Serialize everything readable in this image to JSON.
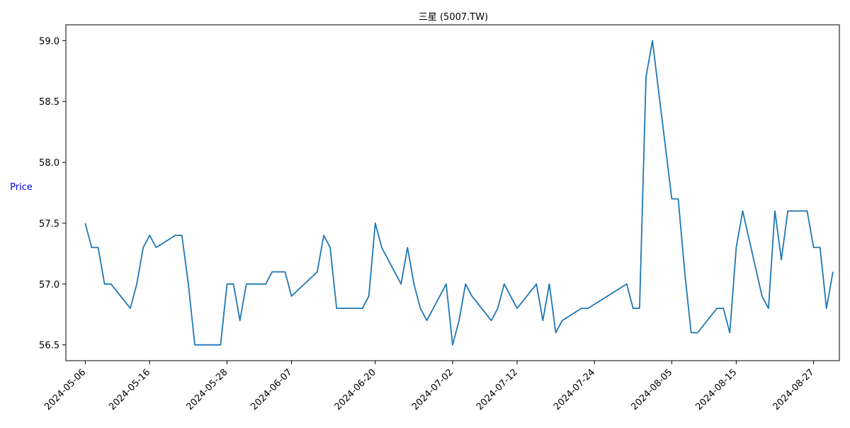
{
  "chart_data": {
    "type": "line",
    "title": "三星 (5007.TW)",
    "xlabel": "",
    "ylabel": "Price",
    "ylim": [
      56.37,
      59.13
    ],
    "xlim": [
      "2024-05-03",
      "2024-08-31"
    ],
    "grid": false,
    "colors": {
      "line": "#1f77b4",
      "ylabel": "#0000ff"
    },
    "x_tick_labels": [
      "2024-05-06",
      "2024-05-16",
      "2024-05-28",
      "2024-06-07",
      "2024-06-20",
      "2024-07-02",
      "2024-07-12",
      "2024-07-24",
      "2024-08-05",
      "2024-08-15",
      "2024-08-27"
    ],
    "y_tick_labels": [
      "56.5",
      "57.0",
      "57.5",
      "58.0",
      "58.5",
      "59.0"
    ],
    "y_tick_values": [
      56.5,
      57.0,
      57.5,
      58.0,
      58.5,
      59.0
    ],
    "series": [
      {
        "x": [
          "2024-05-06",
          "2024-05-07",
          "2024-05-08",
          "2024-05-09",
          "2024-05-10",
          "2024-05-13",
          "2024-05-14",
          "2024-05-15",
          "2024-05-16",
          "2024-05-17",
          "2024-05-20",
          "2024-05-21",
          "2024-05-22",
          "2024-05-23",
          "2024-05-24",
          "2024-05-27",
          "2024-05-28",
          "2024-05-29",
          "2024-05-30",
          "2024-05-31",
          "2024-06-03",
          "2024-06-04",
          "2024-06-05",
          "2024-06-06",
          "2024-06-07",
          "2024-06-11",
          "2024-06-12",
          "2024-06-13",
          "2024-06-14",
          "2024-06-17",
          "2024-06-18",
          "2024-06-19",
          "2024-06-20",
          "2024-06-21",
          "2024-06-24",
          "2024-06-25",
          "2024-06-26",
          "2024-06-27",
          "2024-06-28",
          "2024-07-01",
          "2024-07-02",
          "2024-07-03",
          "2024-07-04",
          "2024-07-05",
          "2024-07-08",
          "2024-07-09",
          "2024-07-10",
          "2024-07-11",
          "2024-07-12",
          "2024-07-15",
          "2024-07-16",
          "2024-07-17",
          "2024-07-18",
          "2024-07-19",
          "2024-07-22",
          "2024-07-23",
          "2024-07-26",
          "2024-07-29",
          "2024-07-30",
          "2024-07-31",
          "2024-08-01",
          "2024-08-02",
          "2024-08-05",
          "2024-08-06",
          "2024-08-07",
          "2024-08-08",
          "2024-08-09",
          "2024-08-12",
          "2024-08-13",
          "2024-08-14",
          "2024-08-15",
          "2024-08-16",
          "2024-08-19",
          "2024-08-20",
          "2024-08-21",
          "2024-08-22",
          "2024-08-23",
          "2024-08-26",
          "2024-08-27",
          "2024-08-28",
          "2024-08-29",
          "2024-08-30"
        ],
        "y": [
          57.5,
          57.3,
          57.3,
          57.0,
          57.0,
          56.8,
          57.0,
          57.3,
          57.4,
          57.3,
          57.4,
          57.4,
          57.0,
          56.5,
          56.5,
          56.5,
          57.0,
          57.0,
          56.7,
          57.0,
          57.0,
          57.1,
          57.1,
          57.1,
          56.9,
          57.1,
          57.4,
          57.3,
          56.8,
          56.8,
          56.8,
          56.9,
          57.5,
          57.3,
          57.0,
          57.3,
          57.0,
          56.8,
          56.7,
          57.0,
          56.5,
          56.7,
          57.0,
          56.9,
          56.7,
          56.8,
          57.0,
          56.9,
          56.8,
          57.0,
          56.7,
          57.0,
          56.6,
          56.7,
          56.8,
          56.8,
          56.9,
          57.0,
          56.8,
          56.8,
          58.7,
          59.0,
          57.7,
          57.7,
          57.1,
          56.6,
          56.6,
          56.8,
          56.8,
          56.6,
          57.3,
          57.6,
          56.9,
          56.8,
          57.6,
          57.2,
          57.6,
          57.6,
          57.3,
          57.3,
          56.8,
          57.1
        ]
      }
    ]
  }
}
